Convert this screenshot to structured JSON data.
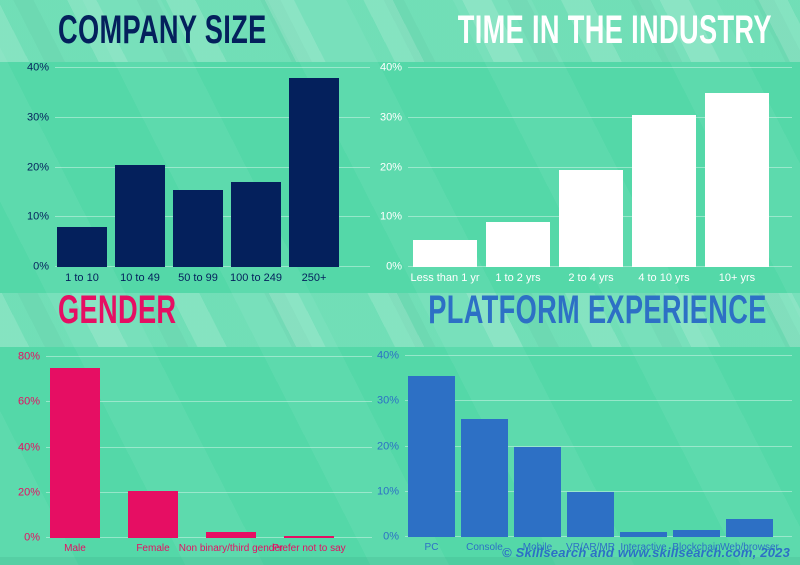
{
  "page": {
    "footer": "© Skillsearch and www.skillsearch.com, 2023",
    "footer_color": "#2d70c5",
    "background_color": "#54d8a8"
  },
  "chart_data": [
    {
      "type": "bar",
      "title": "COMPANY SIZE",
      "color": "#04205c",
      "categories": [
        "1 to 10",
        "10 to 49",
        "50 to 99",
        "100 to 249",
        "250+"
      ],
      "values": [
        8,
        20.5,
        15.5,
        17,
        38
      ],
      "xlabel": "",
      "ylabel": "",
      "ylim": [
        0,
        40
      ],
      "yticks": [
        0,
        10,
        20,
        30,
        40
      ],
      "tick_suffix": "%",
      "grid": true,
      "legend": null
    },
    {
      "type": "bar",
      "title": "TIME IN THE INDUSTRY",
      "color": "#ffffff",
      "categories": [
        "Less than 1 yr",
        "1 to 2 yrs",
        "2 to 4 yrs",
        "4 to 10 yrs",
        "10+ yrs"
      ],
      "values": [
        5.5,
        9,
        19.5,
        30.5,
        35
      ],
      "xlabel": "",
      "ylabel": "",
      "ylim": [
        0,
        40
      ],
      "yticks": [
        0,
        10,
        20,
        30,
        40
      ],
      "tick_suffix": "%",
      "grid": true,
      "legend": null
    },
    {
      "type": "bar",
      "title": "GENDER",
      "color": "#e60e63",
      "categories": [
        "Male",
        "Female",
        "Non binary/third gender",
        "Prefer not to say"
      ],
      "values": [
        75,
        21,
        2.5,
        1
      ],
      "xlabel": "",
      "ylabel": "",
      "ylim": [
        0,
        80
      ],
      "yticks": [
        0,
        20,
        40,
        60,
        80
      ],
      "tick_suffix": "%",
      "grid": true,
      "legend": null
    },
    {
      "type": "bar",
      "title": "PLATFORM EXPERIENCE",
      "color": "#2d70c5",
      "categories": [
        "PC",
        "Console",
        "Mobile",
        "VR/AR/MR",
        "Interactive",
        "Blockchain",
        "Web/browser"
      ],
      "values": [
        35.5,
        26,
        20,
        10,
        1,
        1.5,
        4
      ],
      "xlabel": "",
      "ylabel": "",
      "ylim": [
        0,
        40
      ],
      "yticks": [
        0,
        10,
        20,
        30,
        40
      ],
      "tick_suffix": "%",
      "grid": true,
      "legend": null
    }
  ]
}
